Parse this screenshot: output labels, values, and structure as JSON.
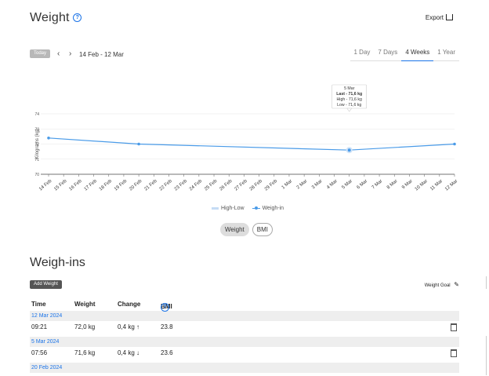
{
  "header": {
    "title": "Weight",
    "help_glyph": "?",
    "export_label": "Export"
  },
  "toolbar": {
    "today_label": "Today",
    "prev_glyph": "‹",
    "next_glyph": "›",
    "date_range": "14 Feb - 12 Mar",
    "ranges": [
      {
        "label": "1 Day",
        "active": false
      },
      {
        "label": "7 Days",
        "active": false
      },
      {
        "label": "4 Weeks",
        "active": true
      },
      {
        "label": "1 Year",
        "active": false
      }
    ]
  },
  "chart_data": {
    "type": "line",
    "ylabel": "Kilograms (kg)",
    "ylim": [
      70,
      74
    ],
    "yticks": [
      70,
      71,
      72,
      73,
      74
    ],
    "categories": [
      "14 Feb",
      "15 Feb",
      "16 Feb",
      "17 Feb",
      "18 Feb",
      "19 Feb",
      "20 Feb",
      "21 Feb",
      "22 Feb",
      "23 Feb",
      "24 Feb",
      "25 Feb",
      "26 Feb",
      "27 Feb",
      "28 Feb",
      "29 Feb",
      "1 Mar",
      "2 Mar",
      "3 Mar",
      "4 Mar",
      "5 Mar",
      "6 Mar",
      "7 Mar",
      "8 Mar",
      "9 Mar",
      "10 Mar",
      "11 Mar",
      "12 Mar"
    ],
    "series": [
      {
        "name": "Weigh-in",
        "color": "#4a9be8",
        "points": [
          {
            "x": "14 Feb",
            "y": 72.4
          },
          {
            "x": "20 Feb",
            "y": 72.0
          },
          {
            "x": "5 Mar",
            "y": 71.6
          },
          {
            "x": "12 Mar",
            "y": 72.0
          }
        ]
      }
    ],
    "legend": [
      {
        "name": "High-Low",
        "color": "#c6dcf5"
      },
      {
        "name": "Weigh-in",
        "color": "#4a9be8"
      }
    ],
    "tooltip": {
      "x": "5 Mar",
      "date": "5 Mar",
      "last": "Last - 71,6 kg",
      "high": "High - 71,6 kg",
      "low": "Low - 71,6 kg"
    },
    "grid": true
  },
  "view_toggle": {
    "weight_label": "Weight",
    "bmi_label": "BMI"
  },
  "weighins": {
    "title": "Weigh-ins",
    "add_label": "Add Weight",
    "goal_label": "Weight Goal",
    "columns": {
      "time": "Time",
      "weight": "Weight",
      "change": "Change",
      "bmi": "BMI"
    },
    "groups": [
      {
        "date": "12 Mar 2024",
        "rows": [
          {
            "time": "09:21",
            "weight": "72,0 kg",
            "change": "0,4 kg ↑",
            "bmi": "23.8"
          }
        ]
      },
      {
        "date": "5 Mar 2024",
        "rows": [
          {
            "time": "07:56",
            "weight": "71,6 kg",
            "change": "0,4 kg ↓",
            "bmi": "23.6"
          }
        ]
      },
      {
        "date": "20 Feb 2024",
        "rows": []
      }
    ]
  }
}
